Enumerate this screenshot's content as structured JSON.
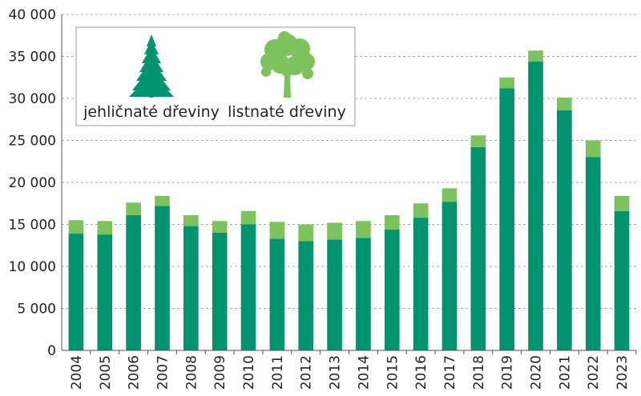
{
  "chart_data": {
    "type": "bar",
    "stacked": true,
    "categories": [
      "2004",
      "2005",
      "2006",
      "2007",
      "2008",
      "2009",
      "2010",
      "2011",
      "2012",
      "2013",
      "2014",
      "2015",
      "2016",
      "2017",
      "2018",
      "2019",
      "2020",
      "2021",
      "2022",
      "2023"
    ],
    "series": [
      {
        "name": "jehličnaté dřeviny",
        "color": "#009370",
        "icon": "conifer-tree-icon",
        "values": [
          13900,
          13800,
          16100,
          17200,
          14800,
          14000,
          15000,
          13300,
          13000,
          13200,
          13400,
          14400,
          15800,
          17700,
          24200,
          31200,
          34400,
          28600,
          23000,
          16600
        ]
      },
      {
        "name": "listnaté dřeviny",
        "color": "#7cc35d",
        "icon": "deciduous-tree-icon",
        "values": [
          1600,
          1600,
          1500,
          1200,
          1300,
          1400,
          1600,
          2000,
          2000,
          2000,
          2000,
          1700,
          1700,
          1600,
          1400,
          1300,
          1300,
          1500,
          2000,
          1800
        ]
      }
    ],
    "ylim": [
      0,
      40000
    ],
    "yticks": [
      0,
      5000,
      10000,
      15000,
      20000,
      25000,
      30000,
      35000,
      40000
    ],
    "ytick_labels": [
      "0",
      "5 000",
      "10 000",
      "15 000",
      "20 000",
      "25 000",
      "30 000",
      "35 000",
      "40 000"
    ],
    "grid": "horizontal-dashed",
    "legend_position": "top-left",
    "title": "",
    "xlabel": "",
    "ylabel": ""
  }
}
